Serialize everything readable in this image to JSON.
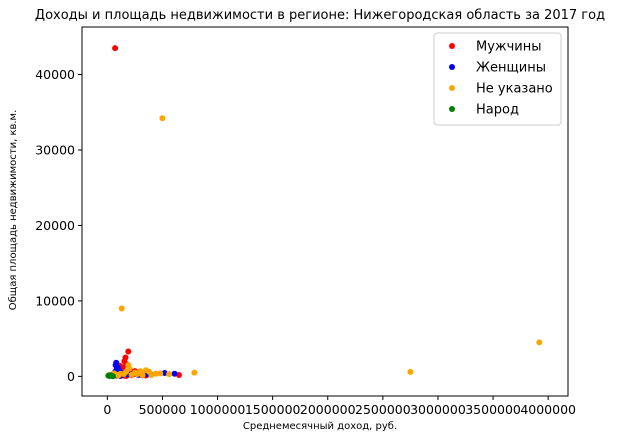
{
  "chart_data": {
    "type": "scatter",
    "title": "Доходы и площадь недвижимости в регионе: Нижегородская область за 2017 год",
    "xlabel": "Среднемесячный доход, руб.",
    "ylabel": "Общая площадь недвижимости, кв.м.",
    "xlim": [
      -230000,
      4180000
    ],
    "ylim": [
      -2600,
      46300
    ],
    "xticks": [
      0,
      500000,
      1000000,
      1500000,
      2000000,
      2500000,
      3000000,
      3500000,
      4000000
    ],
    "xtick_labels": [
      "0",
      "500000",
      "1000000",
      "1500000",
      "2000000",
      "2500000",
      "3000000",
      "3500000",
      "4000000"
    ],
    "yticks": [
      0,
      10000,
      20000,
      30000,
      40000
    ],
    "ytick_labels": [
      "0",
      "10000",
      "20000",
      "30000",
      "40000"
    ],
    "legend_position": "top-right",
    "grid": false,
    "series": [
      {
        "name": "Мужчины",
        "color": "#ff0000",
        "points": [
          [
            70000,
            43500
          ],
          [
            155000,
            2000
          ],
          [
            165000,
            2500
          ],
          [
            190000,
            3300
          ],
          [
            175000,
            1600
          ],
          [
            140000,
            1200
          ],
          [
            120000,
            800
          ],
          [
            200000,
            1000
          ],
          [
            230000,
            600
          ],
          [
            180000,
            400
          ],
          [
            90000,
            500
          ],
          [
            260000,
            300
          ],
          [
            300000,
            200
          ],
          [
            100000,
            300
          ],
          [
            150000,
            100
          ],
          [
            220000,
            150
          ],
          [
            60000,
            200
          ],
          [
            650000,
            180
          ],
          [
            110000,
            1400
          ],
          [
            250000,
            700
          ],
          [
            130000,
            150
          ],
          [
            170000,
            50
          ],
          [
            80000,
            100
          ],
          [
            350000,
            120
          ],
          [
            210000,
            250
          ]
        ]
      },
      {
        "name": "Женщины",
        "color": "#0000ff",
        "points": [
          [
            80000,
            1800
          ],
          [
            95000,
            1200
          ],
          [
            100000,
            900
          ],
          [
            110000,
            700
          ],
          [
            70000,
            600
          ],
          [
            60000,
            400
          ],
          [
            120000,
            500
          ],
          [
            130000,
            300
          ],
          [
            140000,
            200
          ],
          [
            90000,
            100
          ],
          [
            520000,
            450
          ],
          [
            610000,
            350
          ],
          [
            50000,
            200
          ],
          [
            160000,
            400
          ],
          [
            180000,
            300
          ],
          [
            200000,
            250
          ],
          [
            240000,
            350
          ],
          [
            280000,
            200
          ],
          [
            320000,
            150
          ],
          [
            360000,
            300
          ],
          [
            400000,
            250
          ],
          [
            75000,
            1500
          ],
          [
            85000,
            1000
          ],
          [
            105000,
            150
          ],
          [
            115000,
            50
          ]
        ]
      },
      {
        "name": "Не указано",
        "color": "#ffa500",
        "points": [
          [
            500000,
            34200
          ],
          [
            130000,
            9000
          ],
          [
            3920000,
            4500
          ],
          [
            2750000,
            600
          ],
          [
            790000,
            500
          ],
          [
            190000,
            1500
          ],
          [
            350000,
            800
          ],
          [
            480000,
            400
          ],
          [
            250000,
            500
          ],
          [
            300000,
            700
          ],
          [
            150000,
            300
          ],
          [
            400000,
            200
          ],
          [
            200000,
            1000
          ],
          [
            100000,
            100
          ],
          [
            20000,
            200
          ],
          [
            60000,
            400
          ],
          [
            80000,
            250
          ],
          [
            270000,
            300
          ],
          [
            320000,
            150
          ],
          [
            380000,
            600
          ],
          [
            440000,
            350
          ],
          [
            220000,
            200
          ],
          [
            170000,
            600
          ],
          [
            120000,
            350
          ],
          [
            560000,
            300
          ]
        ]
      },
      {
        "name": "Народ",
        "color": "#008000",
        "points": [
          [
            10000,
            100
          ],
          [
            20000,
            50
          ],
          [
            40000,
            80
          ],
          [
            30000,
            150
          ],
          [
            50000,
            30
          ]
        ]
      }
    ]
  }
}
